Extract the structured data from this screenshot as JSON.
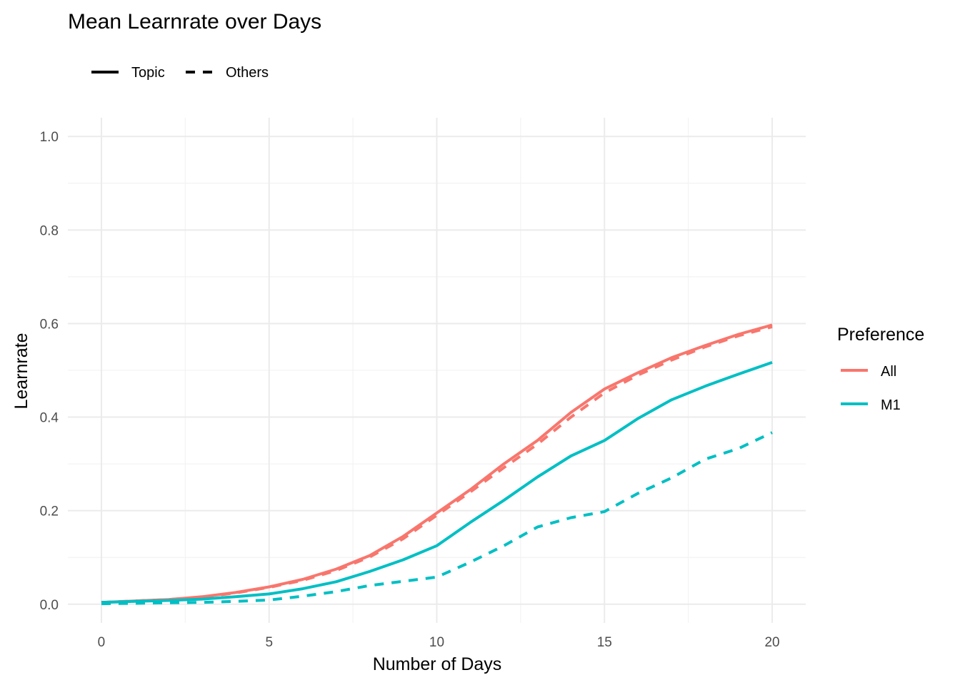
{
  "chart_data": {
    "type": "line",
    "title": "Mean Learnrate over Days",
    "xlabel": "Number of Days",
    "ylabel": "Learnrate",
    "xlim": [
      -1,
      21
    ],
    "ylim": [
      -0.04,
      1.04
    ],
    "x_ticks": [
      0,
      5,
      10,
      15,
      20
    ],
    "y_ticks": [
      0.0,
      0.2,
      0.4,
      0.6,
      0.8,
      1.0
    ],
    "x_tick_labels": [
      "0",
      "5",
      "10",
      "15",
      "20"
    ],
    "y_tick_labels": [
      "0.0",
      "0.2",
      "0.4",
      "0.6",
      "0.8",
      "1.0"
    ],
    "grid": true,
    "linetype_legend": {
      "placement": "top-left",
      "entries": [
        {
          "label": "Topic",
          "dash": "solid"
        },
        {
          "label": "Others",
          "dash": "dashed"
        }
      ]
    },
    "color_legend": {
      "title": "Preference",
      "placement": "right",
      "entries": [
        {
          "label": "All",
          "color": "#F8766D"
        },
        {
          "label": "M1",
          "color": "#00BFC4"
        }
      ]
    },
    "x": [
      0,
      1,
      2,
      3,
      4,
      5,
      6,
      7,
      8,
      9,
      10,
      11,
      12,
      13,
      14,
      15,
      16,
      17,
      18,
      19,
      20
    ],
    "series": [
      {
        "preference": "All",
        "linetype": "Topic",
        "color": "#F8766D",
        "dash": "solid",
        "values": [
          0.004,
          0.007,
          0.01,
          0.016,
          0.025,
          0.037,
          0.053,
          0.075,
          0.104,
          0.145,
          0.195,
          0.245,
          0.3,
          0.35,
          0.41,
          0.46,
          0.495,
          0.527,
          0.553,
          0.577,
          0.597
        ]
      },
      {
        "preference": "All",
        "linetype": "Others",
        "color": "#F8766D",
        "dash": "dashed",
        "values": [
          0.004,
          0.007,
          0.01,
          0.015,
          0.024,
          0.036,
          0.051,
          0.072,
          0.101,
          0.14,
          0.19,
          0.24,
          0.292,
          0.342,
          0.4,
          0.452,
          0.49,
          0.522,
          0.55,
          0.574,
          0.593
        ]
      },
      {
        "preference": "M1",
        "linetype": "Topic",
        "color": "#00BFC4",
        "dash": "solid",
        "values": [
          0.004,
          0.006,
          0.008,
          0.011,
          0.016,
          0.022,
          0.033,
          0.048,
          0.07,
          0.095,
          0.125,
          0.175,
          0.222,
          0.272,
          0.317,
          0.35,
          0.397,
          0.437,
          0.466,
          0.492,
          0.517
        ]
      },
      {
        "preference": "M1",
        "linetype": "Others",
        "color": "#00BFC4",
        "dash": "dashed",
        "values": [
          0.001,
          0.002,
          0.003,
          0.004,
          0.006,
          0.009,
          0.017,
          0.027,
          0.04,
          0.049,
          0.058,
          0.09,
          0.125,
          0.165,
          0.185,
          0.198,
          0.237,
          0.27,
          0.31,
          0.333,
          0.367
        ]
      }
    ]
  }
}
